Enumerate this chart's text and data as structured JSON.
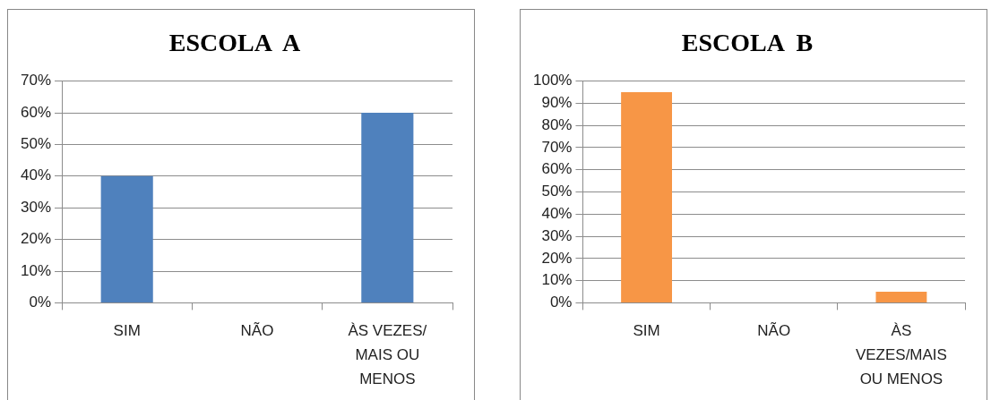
{
  "chart_data": [
    {
      "type": "bar",
      "title": "ESCOLA  A",
      "categories": [
        "SIM",
        "NÃO",
        "ÀS VEZES/ MAIS OU MENOS"
      ],
      "values": [
        40,
        0,
        60
      ],
      "color": "#4f81bd",
      "ylim": [
        0,
        70
      ],
      "yticks": [
        {
          "value": 0,
          "label": "0%"
        },
        {
          "value": 10,
          "label": "10%"
        },
        {
          "value": 20,
          "label": "20%"
        },
        {
          "value": 30,
          "label": "30%"
        },
        {
          "value": 40,
          "label": "40%"
        },
        {
          "value": 50,
          "label": "50%"
        },
        {
          "value": 60,
          "label": "60%"
        },
        {
          "value": 70,
          "label": "70%"
        }
      ],
      "grid": "y",
      "legend": false
    },
    {
      "type": "bar",
      "title": "ESCOLA  B",
      "categories": [
        "SIM",
        "NÃO",
        "ÀS VEZES/MAIS OU MENOS"
      ],
      "values": [
        95,
        0,
        5
      ],
      "color": "#f79646",
      "ylim": [
        0,
        100
      ],
      "yticks": [
        {
          "value": 0,
          "label": "0%"
        },
        {
          "value": 10,
          "label": "10%"
        },
        {
          "value": 20,
          "label": "20%"
        },
        {
          "value": 30,
          "label": "30%"
        },
        {
          "value": 40,
          "label": "40%"
        },
        {
          "value": 50,
          "label": "50%"
        },
        {
          "value": 60,
          "label": "60%"
        },
        {
          "value": 70,
          "label": "70%"
        },
        {
          "value": 80,
          "label": "80%"
        },
        {
          "value": 90,
          "label": "90%"
        },
        {
          "value": 100,
          "label": "100%"
        }
      ],
      "grid": "y",
      "legend": false
    }
  ]
}
